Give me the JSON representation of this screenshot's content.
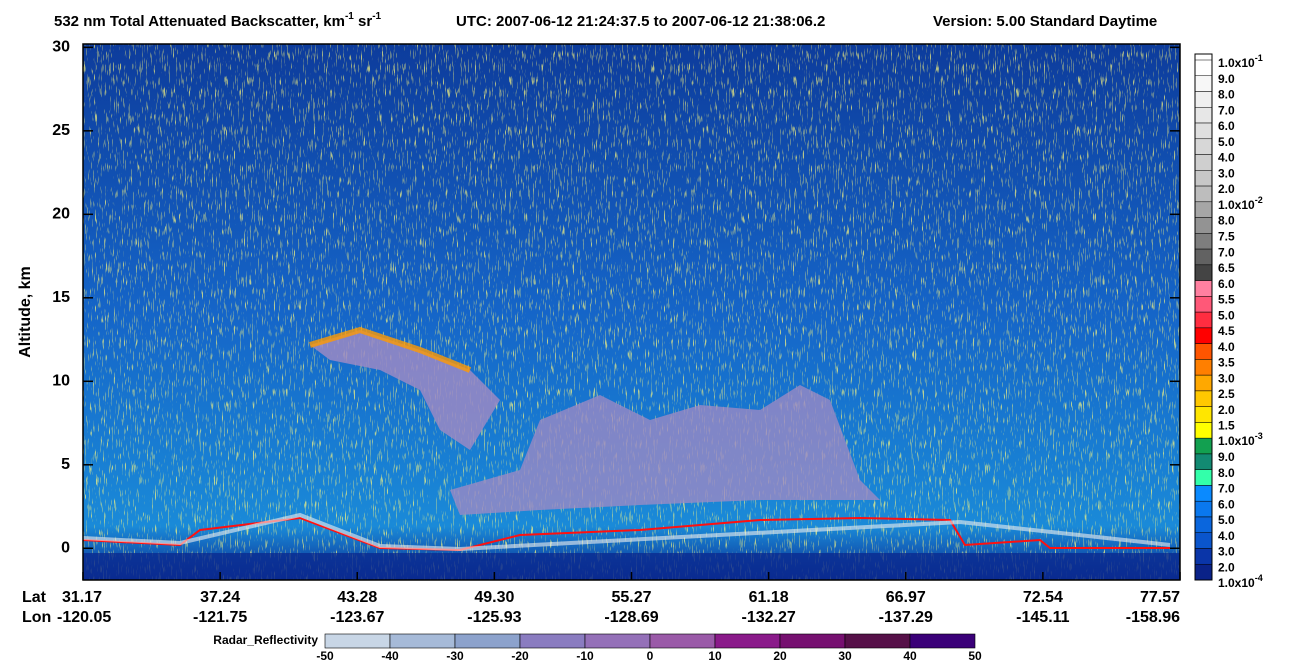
{
  "chart_data": {
    "type": "heatmap",
    "title": {
      "parts": [
        {
          "text": "532 nm Total Attenuated Backscatter, km"
        },
        {
          "sup": "-1"
        },
        {
          "text": " sr"
        },
        {
          "sup": "-1"
        }
      ],
      "utc": "UTC:  2007-06-12 21:24:37.5  to  2007-06-12 21:38:06.2",
      "version": "Version: 5.00  Standard  Daytime"
    },
    "ylabel": "Altitude, km",
    "ylim": [
      -1.9,
      30.2
    ],
    "yticks": [
      0,
      5,
      10,
      15,
      20,
      25,
      30
    ],
    "x_row_labels": [
      "Lat",
      "Lon"
    ],
    "lat": [
      31.17,
      37.24,
      43.28,
      49.3,
      55.27,
      61.18,
      66.97,
      72.54,
      77.57
    ],
    "lat_labels": [
      "31.17",
      "37.24",
      "43.28",
      "49.30",
      "55.27",
      "61.18",
      "66.97",
      "72.54",
      "77.57"
    ],
    "lon": [
      -120.05,
      -121.75,
      -123.67,
      -125.93,
      -128.69,
      -132.27,
      -137.29,
      -145.11,
      -158.96
    ],
    "colorbar": {
      "labels": [
        {
          "text": "1.0x10",
          "exp": "-1"
        },
        "9.0",
        "8.0",
        "7.0",
        "6.0",
        "5.0",
        "4.0",
        "3.0",
        "2.0",
        {
          "text": "1.0x10",
          "exp": "-2"
        },
        "8.0",
        "7.5",
        "7.0",
        "6.5",
        "6.0",
        "5.5",
        "5.0",
        "4.5",
        "4.0",
        "3.5",
        "3.0",
        "2.5",
        "2.0",
        "1.5",
        {
          "text": "1.0x10",
          "exp": "-3"
        },
        "9.0",
        "8.0",
        "7.0",
        "6.0",
        "5.0",
        "4.0",
        "3.0",
        "2.0",
        {
          "text": "1.0x10",
          "exp": "-4"
        }
      ],
      "colors": [
        "#ffffff",
        "#f7f7f7",
        "#efefef",
        "#e7e7e7",
        "#dfdfdf",
        "#d7d7d7",
        "#cfcfcf",
        "#c7c7c7",
        "#bdbdbd",
        "#a6a6a6",
        "#939393",
        "#7e7e7e",
        "#626262",
        "#444444",
        "#ff80a0",
        "#ff5878",
        "#ff2d40",
        "#ff0000",
        "#ff5500",
        "#ff7f00",
        "#ffa800",
        "#ffc800",
        "#ffe600",
        "#ffff00",
        "#12a050",
        "#128a72",
        "#33ffaa",
        "#0a8aff",
        "#0a78ee",
        "#0a66dd",
        "#0a55cc",
        "#0a35a8",
        "#0a2288"
      ]
    },
    "radar": {
      "label": "Radar_Reflectivity",
      "ticks": [
        -50,
        -40,
        -30,
        -20,
        -10,
        0,
        10,
        20,
        30,
        40,
        50
      ],
      "colors": [
        "#c8d6e6",
        "#a6bad8",
        "#8ca2cc",
        "#8a7cc0",
        "#9470b8",
        "#9a5aa8",
        "#8a1a8a",
        "#761070",
        "#561048",
        "#3a0078"
      ]
    }
  }
}
